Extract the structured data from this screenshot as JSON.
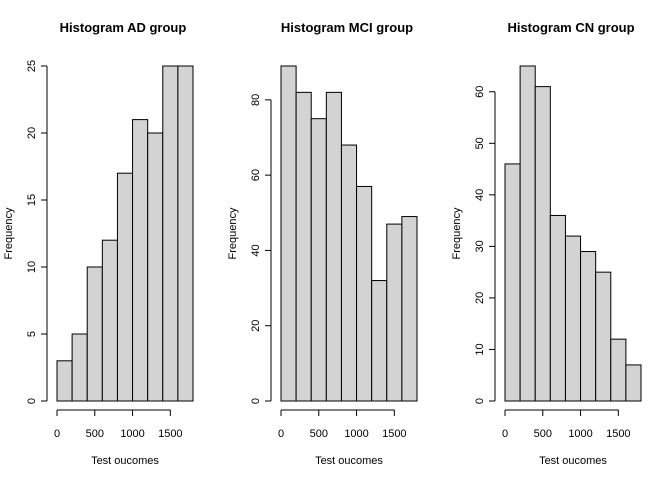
{
  "colors": {
    "bar_fill": "#d3d3d3",
    "bar_stroke": "#000000",
    "background": "#ffffff"
  },
  "chart_data": [
    {
      "type": "bar",
      "title": "Histogram AD group",
      "xlabel": "Test oucomes",
      "ylabel": "Frequency",
      "bin_edges": [
        0,
        200,
        400,
        600,
        800,
        1000,
        1200,
        1400,
        1600,
        1800
      ],
      "values": [
        3,
        5,
        10,
        12,
        17,
        21,
        20,
        25,
        25
      ],
      "ylim": [
        0,
        25
      ],
      "yticks": [
        "0",
        "5",
        "10",
        "15",
        "20",
        "25"
      ],
      "xticks": [
        "0",
        "500",
        "1000",
        "1500"
      ],
      "grid": false
    },
    {
      "type": "bar",
      "title": "Histogram MCI group",
      "xlabel": "Test oucomes",
      "ylabel": "Frequency",
      "bin_edges": [
        0,
        200,
        400,
        600,
        800,
        1000,
        1200,
        1400,
        1600,
        1800
      ],
      "values": [
        89,
        82,
        75,
        82,
        68,
        57,
        32,
        47,
        49
      ],
      "ylim": [
        0,
        89
      ],
      "yticks": [
        "0",
        "20",
        "40",
        "60",
        "80"
      ],
      "xticks": [
        "0",
        "500",
        "1000",
        "1500"
      ],
      "grid": false
    },
    {
      "type": "bar",
      "title": "Histogram CN group",
      "xlabel": "Test oucomes",
      "ylabel": "Frequency",
      "bin_edges": [
        0,
        200,
        400,
        600,
        800,
        1000,
        1200,
        1400,
        1600,
        1800
      ],
      "values": [
        46,
        65,
        61,
        36,
        32,
        29,
        25,
        12,
        7
      ],
      "ylim": [
        0,
        65
      ],
      "yticks": [
        "0",
        "10",
        "20",
        "30",
        "40",
        "50",
        "60"
      ],
      "xticks": [
        "0",
        "500",
        "1000",
        "1500"
      ],
      "grid": false
    }
  ]
}
